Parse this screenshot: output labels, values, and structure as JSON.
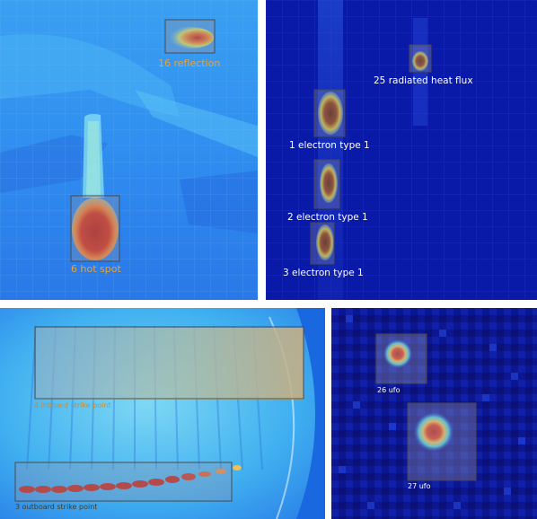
{
  "panels": [
    {
      "id": "top-left",
      "detections": [
        {
          "label": "16 reflection",
          "color": "#e8a23a"
        },
        {
          "label": "6 hot spot",
          "color": "#e8a23a"
        }
      ]
    },
    {
      "id": "top-right",
      "detections": [
        {
          "label": "25 radiated heat flux",
          "color": "#ffffff"
        },
        {
          "label": "1 electron type 1",
          "color": "#ffffff"
        },
        {
          "label": "2 electron type 1",
          "color": "#ffffff"
        },
        {
          "label": "3 electron type 1",
          "color": "#ffffff"
        }
      ]
    },
    {
      "id": "bottom-left",
      "detections": [
        {
          "label": "4 inboard strike point",
          "color": "#c98b3a"
        },
        {
          "label": "3 outboard strike point",
          "color": "#4a3a20"
        }
      ]
    },
    {
      "id": "bottom-right",
      "detections": [
        {
          "label": "26 ufo",
          "color": "#ffffff"
        },
        {
          "label": "27 ufo",
          "color": "#ffffff"
        }
      ]
    }
  ],
  "colors": {
    "hot": "#c0281e",
    "warm": "#f0a040",
    "cyan": "#38c8f0",
    "deep_blue": "#0a1aa0",
    "navy": "#08107a",
    "box_fill": "rgba(160,160,175,0.35)",
    "box_stroke": "#4a4a4a"
  }
}
